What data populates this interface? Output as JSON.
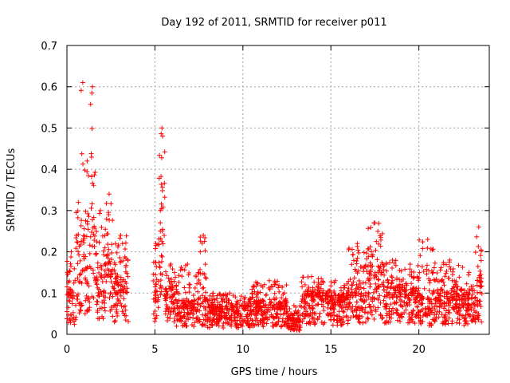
{
  "chart_data": {
    "type": "scatter",
    "title": "Day 192 of 2011, SRMTID for receiver p011",
    "xlabel": "GPS time / hours",
    "ylabel": "SRMTID / TECUs",
    "xlim": [
      0,
      24
    ],
    "ylim": [
      0,
      0.7
    ],
    "xticks": [
      0,
      5,
      10,
      15,
      20
    ],
    "yticks": [
      0,
      0.1,
      0.2,
      0.3,
      0.4,
      0.5,
      0.6,
      0.7
    ],
    "xtick_labels": [
      "0",
      "5",
      "10",
      "15",
      "20"
    ],
    "ytick_labels": [
      "0",
      "0.1",
      "0.2",
      "0.3",
      "0.4",
      "0.5",
      "0.6",
      "0.7"
    ],
    "grid": true,
    "marker": "+",
    "color": "#ff0000",
    "series": [
      {
        "name": "SRMTID",
        "envelope": [
          {
            "x": [
              0.0,
              0.5
            ],
            "y_median": 0.08,
            "y_max": 0.2
          },
          {
            "x": [
              0.5,
              0.8
            ],
            "y_median": 0.12,
            "y_max": 0.32
          },
          {
            "x": [
              0.8,
              1.0
            ],
            "y_median": 0.2,
            "y_max": 0.61
          },
          {
            "x": [
              1.0,
              1.3
            ],
            "y_median": 0.15,
            "y_max": 0.42
          },
          {
            "x": [
              1.3,
              1.6
            ],
            "y_median": 0.22,
            "y_max": 0.6
          },
          {
            "x": [
              1.6,
              2.2
            ],
            "y_median": 0.12,
            "y_max": 0.3
          },
          {
            "x": [
              2.2,
              2.6
            ],
            "y_median": 0.14,
            "y_max": 0.34
          },
          {
            "x": [
              2.6,
              3.5
            ],
            "y_median": 0.1,
            "y_max": 0.24
          },
          {
            "x": [
              4.9,
              5.2
            ],
            "y_median": 0.1,
            "y_max": 0.22
          },
          {
            "x": [
              5.2,
              5.6
            ],
            "y_median": 0.25,
            "y_max": 0.5
          },
          {
            "x": [
              5.6,
              6.2
            ],
            "y_median": 0.08,
            "y_max": 0.17
          },
          {
            "x": [
              6.2,
              7.5
            ],
            "y_median": 0.06,
            "y_max": 0.17
          },
          {
            "x": [
              7.5,
              8.0
            ],
            "y_median": 0.07,
            "y_max": 0.24
          },
          {
            "x": [
              8.0,
              10.5
            ],
            "y_median": 0.05,
            "y_max": 0.1
          },
          {
            "x": [
              10.5,
              12.5
            ],
            "y_median": 0.06,
            "y_max": 0.13
          },
          {
            "x": [
              12.5,
              13.3
            ],
            "y_median": 0.03,
            "y_max": 0.07
          },
          {
            "x": [
              13.3,
              14.5
            ],
            "y_median": 0.08,
            "y_max": 0.14
          },
          {
            "x": [
              14.5,
              16.0
            ],
            "y_median": 0.07,
            "y_max": 0.13
          },
          {
            "x": [
              16.0,
              17.0
            ],
            "y_median": 0.09,
            "y_max": 0.22
          },
          {
            "x": [
              17.0,
              18.0
            ],
            "y_median": 0.12,
            "y_max": 0.27
          },
          {
            "x": [
              18.0,
              19.0
            ],
            "y_median": 0.09,
            "y_max": 0.18
          },
          {
            "x": [
              19.0,
              20.0
            ],
            "y_median": 0.08,
            "y_max": 0.17
          },
          {
            "x": [
              20.0,
              21.0
            ],
            "y_median": 0.07,
            "y_max": 0.23
          },
          {
            "x": [
              21.0,
              22.5
            ],
            "y_median": 0.08,
            "y_max": 0.18
          },
          {
            "x": [
              22.5,
              23.2
            ],
            "y_median": 0.07,
            "y_max": 0.15
          },
          {
            "x": [
              23.2,
              23.6
            ],
            "y_median": 0.1,
            "y_max": 0.26
          }
        ],
        "gaps": [
          [
            3.5,
            4.9
          ]
        ]
      }
    ]
  }
}
